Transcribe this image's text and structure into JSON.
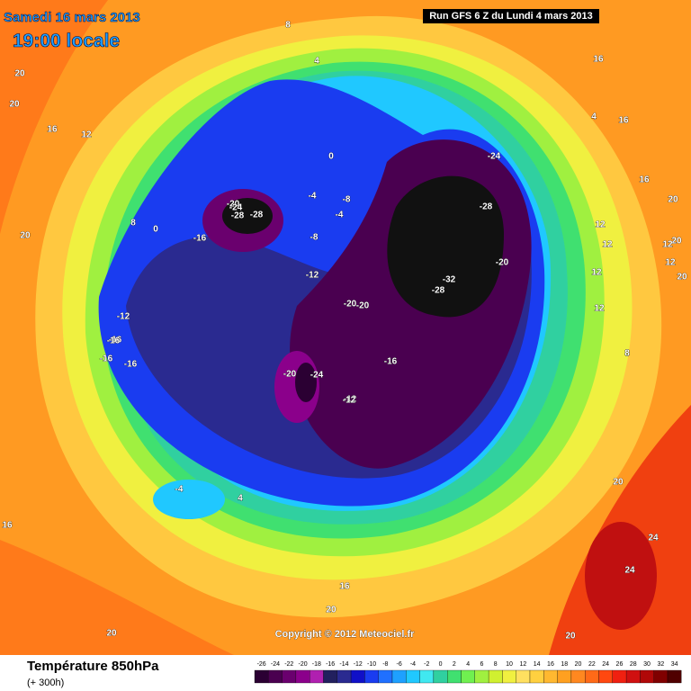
{
  "header": {
    "date": "Samedi 16 mars 2013",
    "time": "19:00 locale",
    "run": "Run GFS 6 Z du Lundi 4 mars 2013"
  },
  "copyright": "Copyright © 2012 Meteociel.fr",
  "footer": {
    "title": "Température 850hPa",
    "subtitle": "(+ 300h)"
  },
  "legend": {
    "items": [
      {
        "label": -26,
        "color": "#2b0033"
      },
      {
        "label": -24,
        "color": "#4a0050"
      },
      {
        "label": -22,
        "color": "#6a006e"
      },
      {
        "label": -20,
        "color": "#8b008b"
      },
      {
        "label": -18,
        "color": "#b020b0"
      },
      {
        "label": -16,
        "color": "#22205e"
      },
      {
        "label": -14,
        "color": "#2a2a90"
      },
      {
        "label": -12,
        "color": "#1010c8"
      },
      {
        "label": -10,
        "color": "#1a3cf0"
      },
      {
        "label": -8,
        "color": "#2070ff"
      },
      {
        "label": -6,
        "color": "#1ea0ff"
      },
      {
        "label": -4,
        "color": "#20c8ff"
      },
      {
        "label": -2,
        "color": "#40e8f0"
      },
      {
        "label": 0,
        "color": "#30d0a0"
      },
      {
        "label": 2,
        "color": "#40e070"
      },
      {
        "label": 4,
        "color": "#70f050"
      },
      {
        "label": 6,
        "color": "#a0f040"
      },
      {
        "label": 8,
        "color": "#d0f030"
      },
      {
        "label": 10,
        "color": "#f0f040"
      },
      {
        "label": 12,
        "color": "#ffe060"
      },
      {
        "label": 14,
        "color": "#ffd040"
      },
      {
        "label": 16,
        "color": "#ffb830"
      },
      {
        "label": 18,
        "color": "#ffa020"
      },
      {
        "label": 20,
        "color": "#ff8820"
      },
      {
        "label": 22,
        "color": "#ff6a18"
      },
      {
        "label": 24,
        "color": "#ff4810"
      },
      {
        "label": 26,
        "color": "#f02010"
      },
      {
        "label": 28,
        "color": "#d01010"
      },
      {
        "label": 30,
        "color": "#b00808"
      },
      {
        "label": 32,
        "color": "#800000"
      },
      {
        "label": 34,
        "color": "#500000"
      }
    ]
  },
  "contour_labels": [
    8,
    4,
    20,
    20,
    16,
    12,
    8,
    0,
    20,
    16,
    4,
    16,
    16,
    20,
    12,
    12,
    12,
    12,
    8,
    20,
    20,
    12,
    12,
    -24,
    -28,
    -28,
    -32,
    -28,
    -20,
    -24,
    -28,
    -20,
    -16,
    -16,
    -8,
    -8,
    -4,
    -4,
    -12,
    -20,
    -20,
    -12,
    -12,
    -16,
    -16,
    -16,
    -20,
    -24,
    -16,
    -12,
    0,
    -4,
    4,
    16,
    20,
    20,
    24,
    24,
    20,
    16,
    20,
    8
  ]
}
